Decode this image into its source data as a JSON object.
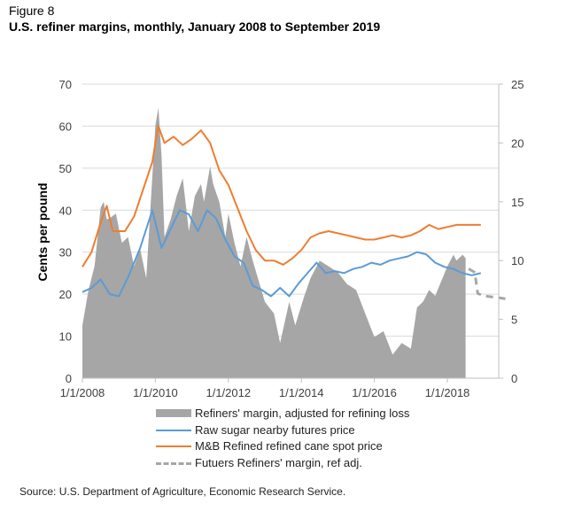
{
  "figure_label": "Figure 8",
  "title": "U.S. refiner margins, monthly, January 2008 to September 2019",
  "source": "Source: U.S. Department of Agriculture, Economic Research Service.",
  "colors": {
    "area": "#a6a6a6",
    "raw_sugar": "#5b9bd5",
    "refined": "#ed7d31",
    "futures": "#a6a6a6",
    "axis": "#bfbfbf",
    "grid": "#d9d9d9"
  },
  "chart_data": {
    "type": "line",
    "ylabel": "Cents per pound",
    "ylim": [
      0,
      70
    ],
    "y2lim": [
      0,
      25
    ],
    "yticks": [
      "0",
      "10",
      "20",
      "30",
      "40",
      "50",
      "60",
      "70"
    ],
    "y2ticks": [
      "0",
      "5",
      "10",
      "15",
      "20",
      "25"
    ],
    "xlim": [
      "2008-01",
      "2019-09"
    ],
    "xticks": [
      "1/1/2008",
      "1/1/2010",
      "1/1/2012",
      "1/1/2014",
      "1/1/2016",
      "1/1/2018"
    ],
    "grid": true,
    "legend_position": "bottom",
    "series": [
      {
        "name": "Refiners' margin, adjusted for refining loss",
        "type": "area",
        "axis": "right",
        "points": [
          [
            "2008-01",
            4.5
          ],
          [
            "2008-03",
            7.5
          ],
          [
            "2008-05",
            9.5
          ],
          [
            "2008-07",
            14.5
          ],
          [
            "2008-08",
            15.0
          ],
          [
            "2008-09",
            13.5
          ],
          [
            "2008-10",
            13.6
          ],
          [
            "2008-12",
            14.0
          ],
          [
            "2009-02",
            11.5
          ],
          [
            "2009-04",
            12.0
          ],
          [
            "2009-06",
            9.5
          ],
          [
            "2009-08",
            11.0
          ],
          [
            "2009-10",
            8.5
          ],
          [
            "2010-01",
            21.5
          ],
          [
            "2010-02",
            23.0
          ],
          [
            "2010-03",
            19.0
          ],
          [
            "2010-04",
            12.0
          ],
          [
            "2010-06",
            13.5
          ],
          [
            "2010-08",
            15.5
          ],
          [
            "2010-10",
            17.0
          ],
          [
            "2010-12",
            12.5
          ],
          [
            "2011-02",
            15.5
          ],
          [
            "2011-04",
            16.5
          ],
          [
            "2011-05",
            15.0
          ],
          [
            "2011-07",
            18.0
          ],
          [
            "2011-08",
            16.5
          ],
          [
            "2011-10",
            15.0
          ],
          [
            "2011-12",
            12.0
          ],
          [
            "2012-01",
            14.0
          ],
          [
            "2012-03",
            11.5
          ],
          [
            "2012-05",
            9.5
          ],
          [
            "2012-07",
            12.0
          ],
          [
            "2012-09",
            10.0
          ],
          [
            "2013-01",
            6.5
          ],
          [
            "2013-04",
            5.5
          ],
          [
            "2013-06",
            3.0
          ],
          [
            "2013-09",
            6.5
          ],
          [
            "2013-11",
            4.5
          ],
          [
            "2014-02",
            7.0
          ],
          [
            "2014-04",
            8.5
          ],
          [
            "2014-07",
            10.0
          ],
          [
            "2014-10",
            9.5
          ],
          [
            "2015-01",
            9.0
          ],
          [
            "2015-04",
            8.0
          ],
          [
            "2015-07",
            7.5
          ],
          [
            "2015-10",
            5.5
          ],
          [
            "2016-01",
            3.5
          ],
          [
            "2016-04",
            4.0
          ],
          [
            "2016-07",
            2.0
          ],
          [
            "2016-10",
            3.0
          ],
          [
            "2017-01",
            2.5
          ],
          [
            "2017-03",
            6.0
          ],
          [
            "2017-05",
            6.5
          ],
          [
            "2017-07",
            7.5
          ],
          [
            "2017-09",
            7.0
          ],
          [
            "2018-01",
            9.5
          ],
          [
            "2018-03",
            10.5
          ],
          [
            "2018-04",
            10.0
          ],
          [
            "2018-06",
            10.5
          ],
          [
            "2018-07",
            10.2
          ]
        ]
      },
      {
        "name": "Raw sugar nearby futures price",
        "type": "line",
        "axis": "left",
        "points": [
          [
            "2008-01",
            20.5
          ],
          [
            "2008-04",
            21.5
          ],
          [
            "2008-07",
            23.5
          ],
          [
            "2008-10",
            20.0
          ],
          [
            "2009-01",
            19.5
          ],
          [
            "2009-04",
            24.0
          ],
          [
            "2009-08",
            31.0
          ],
          [
            "2009-12",
            40.0
          ],
          [
            "2010-03",
            31.0
          ],
          [
            "2010-06",
            35.5
          ],
          [
            "2010-09",
            40.0
          ],
          [
            "2010-12",
            39.0
          ],
          [
            "2011-03",
            35.0
          ],
          [
            "2011-06",
            40.0
          ],
          [
            "2011-09",
            38.0
          ],
          [
            "2011-12",
            33.0
          ],
          [
            "2012-03",
            29.0
          ],
          [
            "2012-06",
            27.5
          ],
          [
            "2012-09",
            22.0
          ],
          [
            "2012-12",
            21.0
          ],
          [
            "2013-03",
            19.5
          ],
          [
            "2013-06",
            21.5
          ],
          [
            "2013-09",
            19.5
          ],
          [
            "2013-12",
            22.5
          ],
          [
            "2014-03",
            25.0
          ],
          [
            "2014-06",
            27.5
          ],
          [
            "2014-09",
            25.0
          ],
          [
            "2014-12",
            25.5
          ],
          [
            "2015-03",
            25.0
          ],
          [
            "2015-06",
            26.0
          ],
          [
            "2015-09",
            26.5
          ],
          [
            "2015-12",
            27.5
          ],
          [
            "2016-03",
            27.0
          ],
          [
            "2016-06",
            28.0
          ],
          [
            "2016-09",
            28.5
          ],
          [
            "2016-12",
            29.0
          ],
          [
            "2017-03",
            30.0
          ],
          [
            "2017-06",
            29.5
          ],
          [
            "2017-09",
            27.5
          ],
          [
            "2017-12",
            26.5
          ],
          [
            "2018-03",
            26.0
          ],
          [
            "2018-06",
            25.0
          ],
          [
            "2018-09",
            24.5
          ],
          [
            "2018-12",
            25.0
          ]
        ]
      },
      {
        "name": "M&B Refined refined cane spot price",
        "type": "line",
        "axis": "left",
        "points": [
          [
            "2008-01",
            26.5
          ],
          [
            "2008-04",
            30.0
          ],
          [
            "2008-07",
            37.0
          ],
          [
            "2008-09",
            41.0
          ],
          [
            "2008-11",
            35.0
          ],
          [
            "2009-03",
            35.0
          ],
          [
            "2009-06",
            38.5
          ],
          [
            "2009-09",
            45.0
          ],
          [
            "2009-12",
            51.5
          ],
          [
            "2010-01",
            56.0
          ],
          [
            "2010-02",
            60.0
          ],
          [
            "2010-04",
            56.0
          ],
          [
            "2010-07",
            57.5
          ],
          [
            "2010-10",
            55.5
          ],
          [
            "2011-01",
            57.0
          ],
          [
            "2011-04",
            59.0
          ],
          [
            "2011-07",
            56.0
          ],
          [
            "2011-10",
            49.5
          ],
          [
            "2012-01",
            46.0
          ],
          [
            "2012-04",
            40.5
          ],
          [
            "2012-07",
            35.0
          ],
          [
            "2012-10",
            30.5
          ],
          [
            "2013-01",
            28.0
          ],
          [
            "2013-04",
            28.0
          ],
          [
            "2013-07",
            27.0
          ],
          [
            "2013-10",
            28.5
          ],
          [
            "2014-01",
            30.5
          ],
          [
            "2014-04",
            33.5
          ],
          [
            "2014-07",
            34.5
          ],
          [
            "2014-10",
            35.0
          ],
          [
            "2015-01",
            34.5
          ],
          [
            "2015-04",
            34.0
          ],
          [
            "2015-07",
            33.5
          ],
          [
            "2015-10",
            33.0
          ],
          [
            "2016-01",
            33.0
          ],
          [
            "2016-04",
            33.5
          ],
          [
            "2016-07",
            34.0
          ],
          [
            "2016-10",
            33.5
          ],
          [
            "2017-01",
            34.0
          ],
          [
            "2017-04",
            35.0
          ],
          [
            "2017-07",
            36.5
          ],
          [
            "2017-10",
            35.5
          ],
          [
            "2018-01",
            36.0
          ],
          [
            "2018-04",
            36.5
          ],
          [
            "2018-07",
            36.5
          ],
          [
            "2018-10",
            36.5
          ],
          [
            "2018-12",
            36.5
          ]
        ]
      },
      {
        "name": "Futuers Refiners' margin, ref adj.",
        "type": "dashed",
        "axis": "right",
        "points": [
          [
            "2018-08",
            9.3
          ],
          [
            "2018-10",
            9.0
          ],
          [
            "2018-11",
            7.2
          ],
          [
            "2019-01",
            7.0
          ],
          [
            "2019-04",
            6.9
          ],
          [
            "2019-07",
            6.8
          ],
          [
            "2019-09",
            6.7
          ]
        ]
      }
    ]
  }
}
